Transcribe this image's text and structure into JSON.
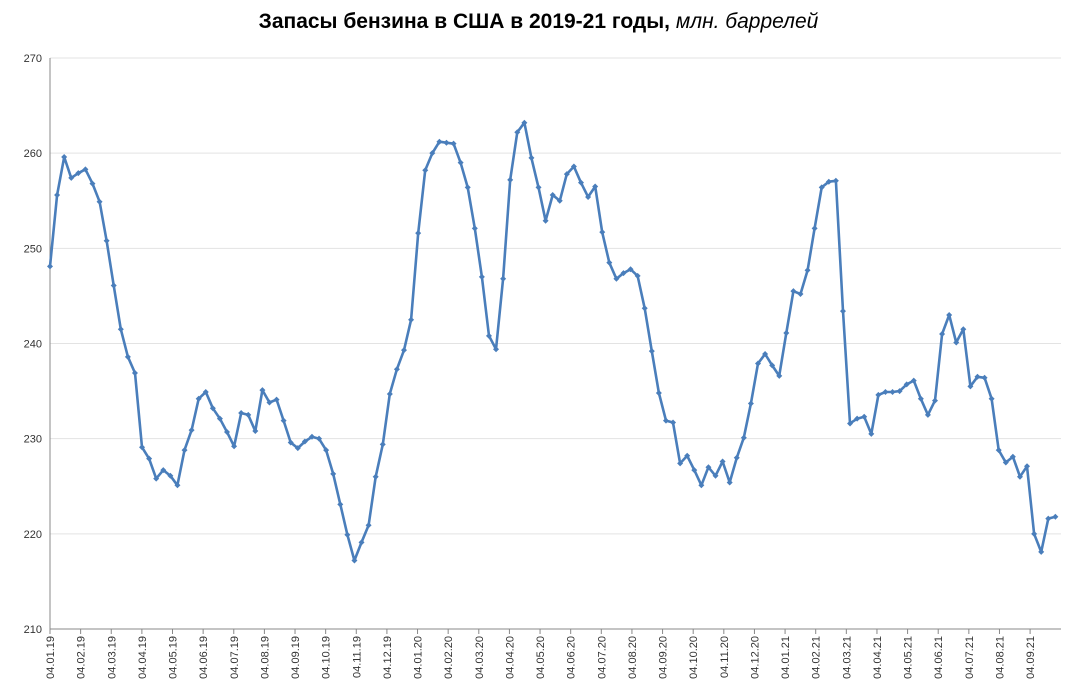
{
  "chart_data": {
    "type": "line",
    "title": "Запасы бензина в США в 2019-21 годы,",
    "title_unit": "млн. баррелей",
    "xlabel": "",
    "ylabel": "",
    "ylim": [
      210,
      270
    ],
    "y_ticks": [
      210,
      220,
      230,
      240,
      250,
      260,
      270
    ],
    "grid": "horizontal",
    "legend": "none",
    "line_color": "#4a7ebb",
    "tick_labels": [
      "04.01.19",
      "04.02.19",
      "04.03.19",
      "04.04.19",
      "04.05.19",
      "04.06.19",
      "04.07.19",
      "04.08.19",
      "04.09.19",
      "04.10.19",
      "04.11.19",
      "04.12.19",
      "04.01.20",
      "04.02.20",
      "04.03.20",
      "04.04.20",
      "04.05.20",
      "04.06.20",
      "04.07.20",
      "04.08.20",
      "04.09.20",
      "04.10.20",
      "04.11.20",
      "04.12.20",
      "04.01.21",
      "04.02.21",
      "04.03.21",
      "04.04.21",
      "04.05.21",
      "04.06.21",
      "04.07.21",
      "04.08.21",
      "04.09.21"
    ],
    "series": [
      {
        "values": [
          248.1,
          255.6,
          259.6,
          257.4,
          257.9,
          258.3,
          256.8,
          254.9,
          250.8,
          246.1,
          241.5,
          238.6,
          236.9,
          229.1,
          227.9,
          225.8,
          226.7,
          226.1,
          225.1,
          228.8,
          230.9,
          234.2,
          234.9,
          233.2,
          232.1,
          230.7,
          229.2,
          232.7,
          232.5,
          230.8,
          235.1,
          233.8,
          234.1,
          231.9,
          229.6,
          229.0,
          229.7,
          230.2,
          230.0,
          228.8,
          226.3,
          223.1,
          219.9,
          217.2,
          219.1,
          220.9,
          226.0,
          229.4,
          234.7,
          237.3,
          239.3,
          242.5,
          251.6,
          258.2,
          260.0,
          261.2,
          261.1,
          261.0,
          259.0,
          256.4,
          252.1,
          247.0,
          240.8,
          239.4,
          246.8,
          257.2,
          262.2,
          263.2,
          259.5,
          256.4,
          252.9,
          255.6,
          255.0,
          257.8,
          258.6,
          256.9,
          255.4,
          256.5,
          251.7,
          248.5,
          246.8,
          247.4,
          247.8,
          247.1,
          243.7,
          239.2,
          234.8,
          231.9,
          231.7,
          227.4,
          228.2,
          226.7,
          225.1,
          227.0,
          226.1,
          227.6,
          225.4,
          228.0,
          230.1,
          233.7,
          237.9,
          238.9,
          237.7,
          236.6,
          241.1,
          245.5,
          245.2,
          247.7,
          252.1,
          256.4,
          257.0,
          257.1,
          243.4,
          231.6,
          232.1,
          232.3,
          230.5,
          234.6,
          234.9,
          234.9,
          235.0,
          235.7,
          236.1,
          234.2,
          232.5,
          234.0,
          241.0,
          243.0,
          240.1,
          241.5,
          235.5,
          236.5,
          236.4,
          234.2,
          228.8,
          227.5,
          228.1,
          226.0,
          227.1,
          220.0,
          218.1,
          221.6,
          221.8
        ]
      }
    ]
  }
}
